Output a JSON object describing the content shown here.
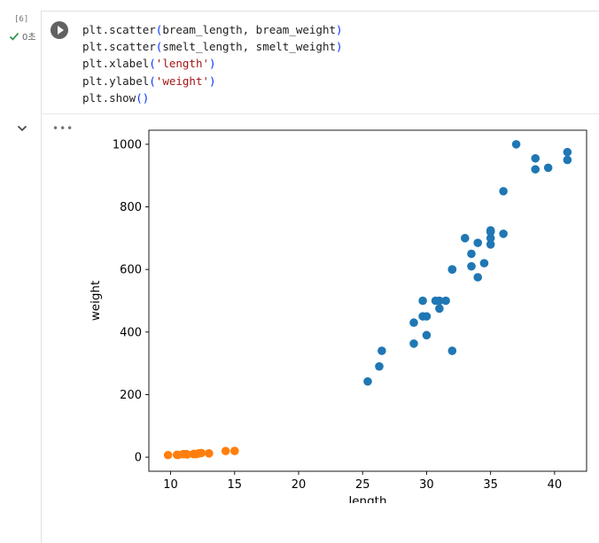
{
  "cell": {
    "execution_count": "[6]",
    "status_text": "0초",
    "status_icon": "check-icon",
    "run_icon": "play-icon",
    "more_icon": "more-horizontal-icon",
    "collapse_icon": "chevron-down-icon",
    "code_lines": [
      {
        "pre": "plt.scatter",
        "open": "(",
        "args": "bream_length, bream_weight",
        "close": ")"
      },
      {
        "pre": "plt.scatter",
        "open": "(",
        "args": "smelt_length, smelt_weight",
        "close": ")"
      },
      {
        "pre": "plt.xlabel",
        "open": "(",
        "str": "'length'",
        "close": ")"
      },
      {
        "pre": "plt.ylabel",
        "open": "(",
        "str": "'weight'",
        "close": ")"
      },
      {
        "pre": "plt.show",
        "open": "(",
        "close": ")"
      }
    ]
  },
  "chart_data": {
    "type": "scatter",
    "xlabel": "length",
    "ylabel": "weight",
    "xlim": [
      8.3,
      42.5
    ],
    "ylim": [
      -45,
      1045
    ],
    "xticks": [
      10,
      15,
      20,
      25,
      30,
      35,
      40
    ],
    "yticks": [
      0,
      200,
      400,
      600,
      800,
      1000
    ],
    "grid": false,
    "series": [
      {
        "color": "#1f77b4",
        "points": [
          [
            25.4,
            242
          ],
          [
            26.3,
            290
          ],
          [
            26.5,
            340
          ],
          [
            29.0,
            363
          ],
          [
            29.0,
            430
          ],
          [
            29.7,
            450
          ],
          [
            29.7,
            500
          ],
          [
            30.0,
            390
          ],
          [
            30.0,
            450
          ],
          [
            30.7,
            500
          ],
          [
            31.0,
            475
          ],
          [
            31.0,
            500
          ],
          [
            31.5,
            500
          ],
          [
            32.0,
            340
          ],
          [
            32.0,
            600
          ],
          [
            32.0,
            600
          ],
          [
            33.0,
            700
          ],
          [
            33.5,
            610
          ],
          [
            33.5,
            650
          ],
          [
            34.0,
            575
          ],
          [
            34.0,
            685
          ],
          [
            34.5,
            620
          ],
          [
            35.0,
            680
          ],
          [
            35.0,
            700
          ],
          [
            35.0,
            725
          ],
          [
            35.0,
            720
          ],
          [
            36.0,
            714
          ],
          [
            36.0,
            850
          ],
          [
            37.0,
            1000
          ],
          [
            38.5,
            920
          ],
          [
            38.5,
            955
          ],
          [
            39.5,
            925
          ],
          [
            41.0,
            975
          ],
          [
            41.0,
            950
          ]
        ]
      },
      {
        "color": "#ff7f0e",
        "points": [
          [
            9.8,
            6.7
          ],
          [
            10.5,
            7.5
          ],
          [
            10.6,
            7.0
          ],
          [
            11.0,
            9.7
          ],
          [
            11.2,
            9.8
          ],
          [
            11.3,
            8.7
          ],
          [
            11.8,
            10.0
          ],
          [
            11.8,
            9.9
          ],
          [
            12.0,
            9.8
          ],
          [
            12.2,
            12.2
          ],
          [
            12.4,
            13.4
          ],
          [
            13.0,
            12.2
          ],
          [
            14.3,
            19.7
          ],
          [
            15.0,
            19.9
          ]
        ]
      }
    ]
  }
}
